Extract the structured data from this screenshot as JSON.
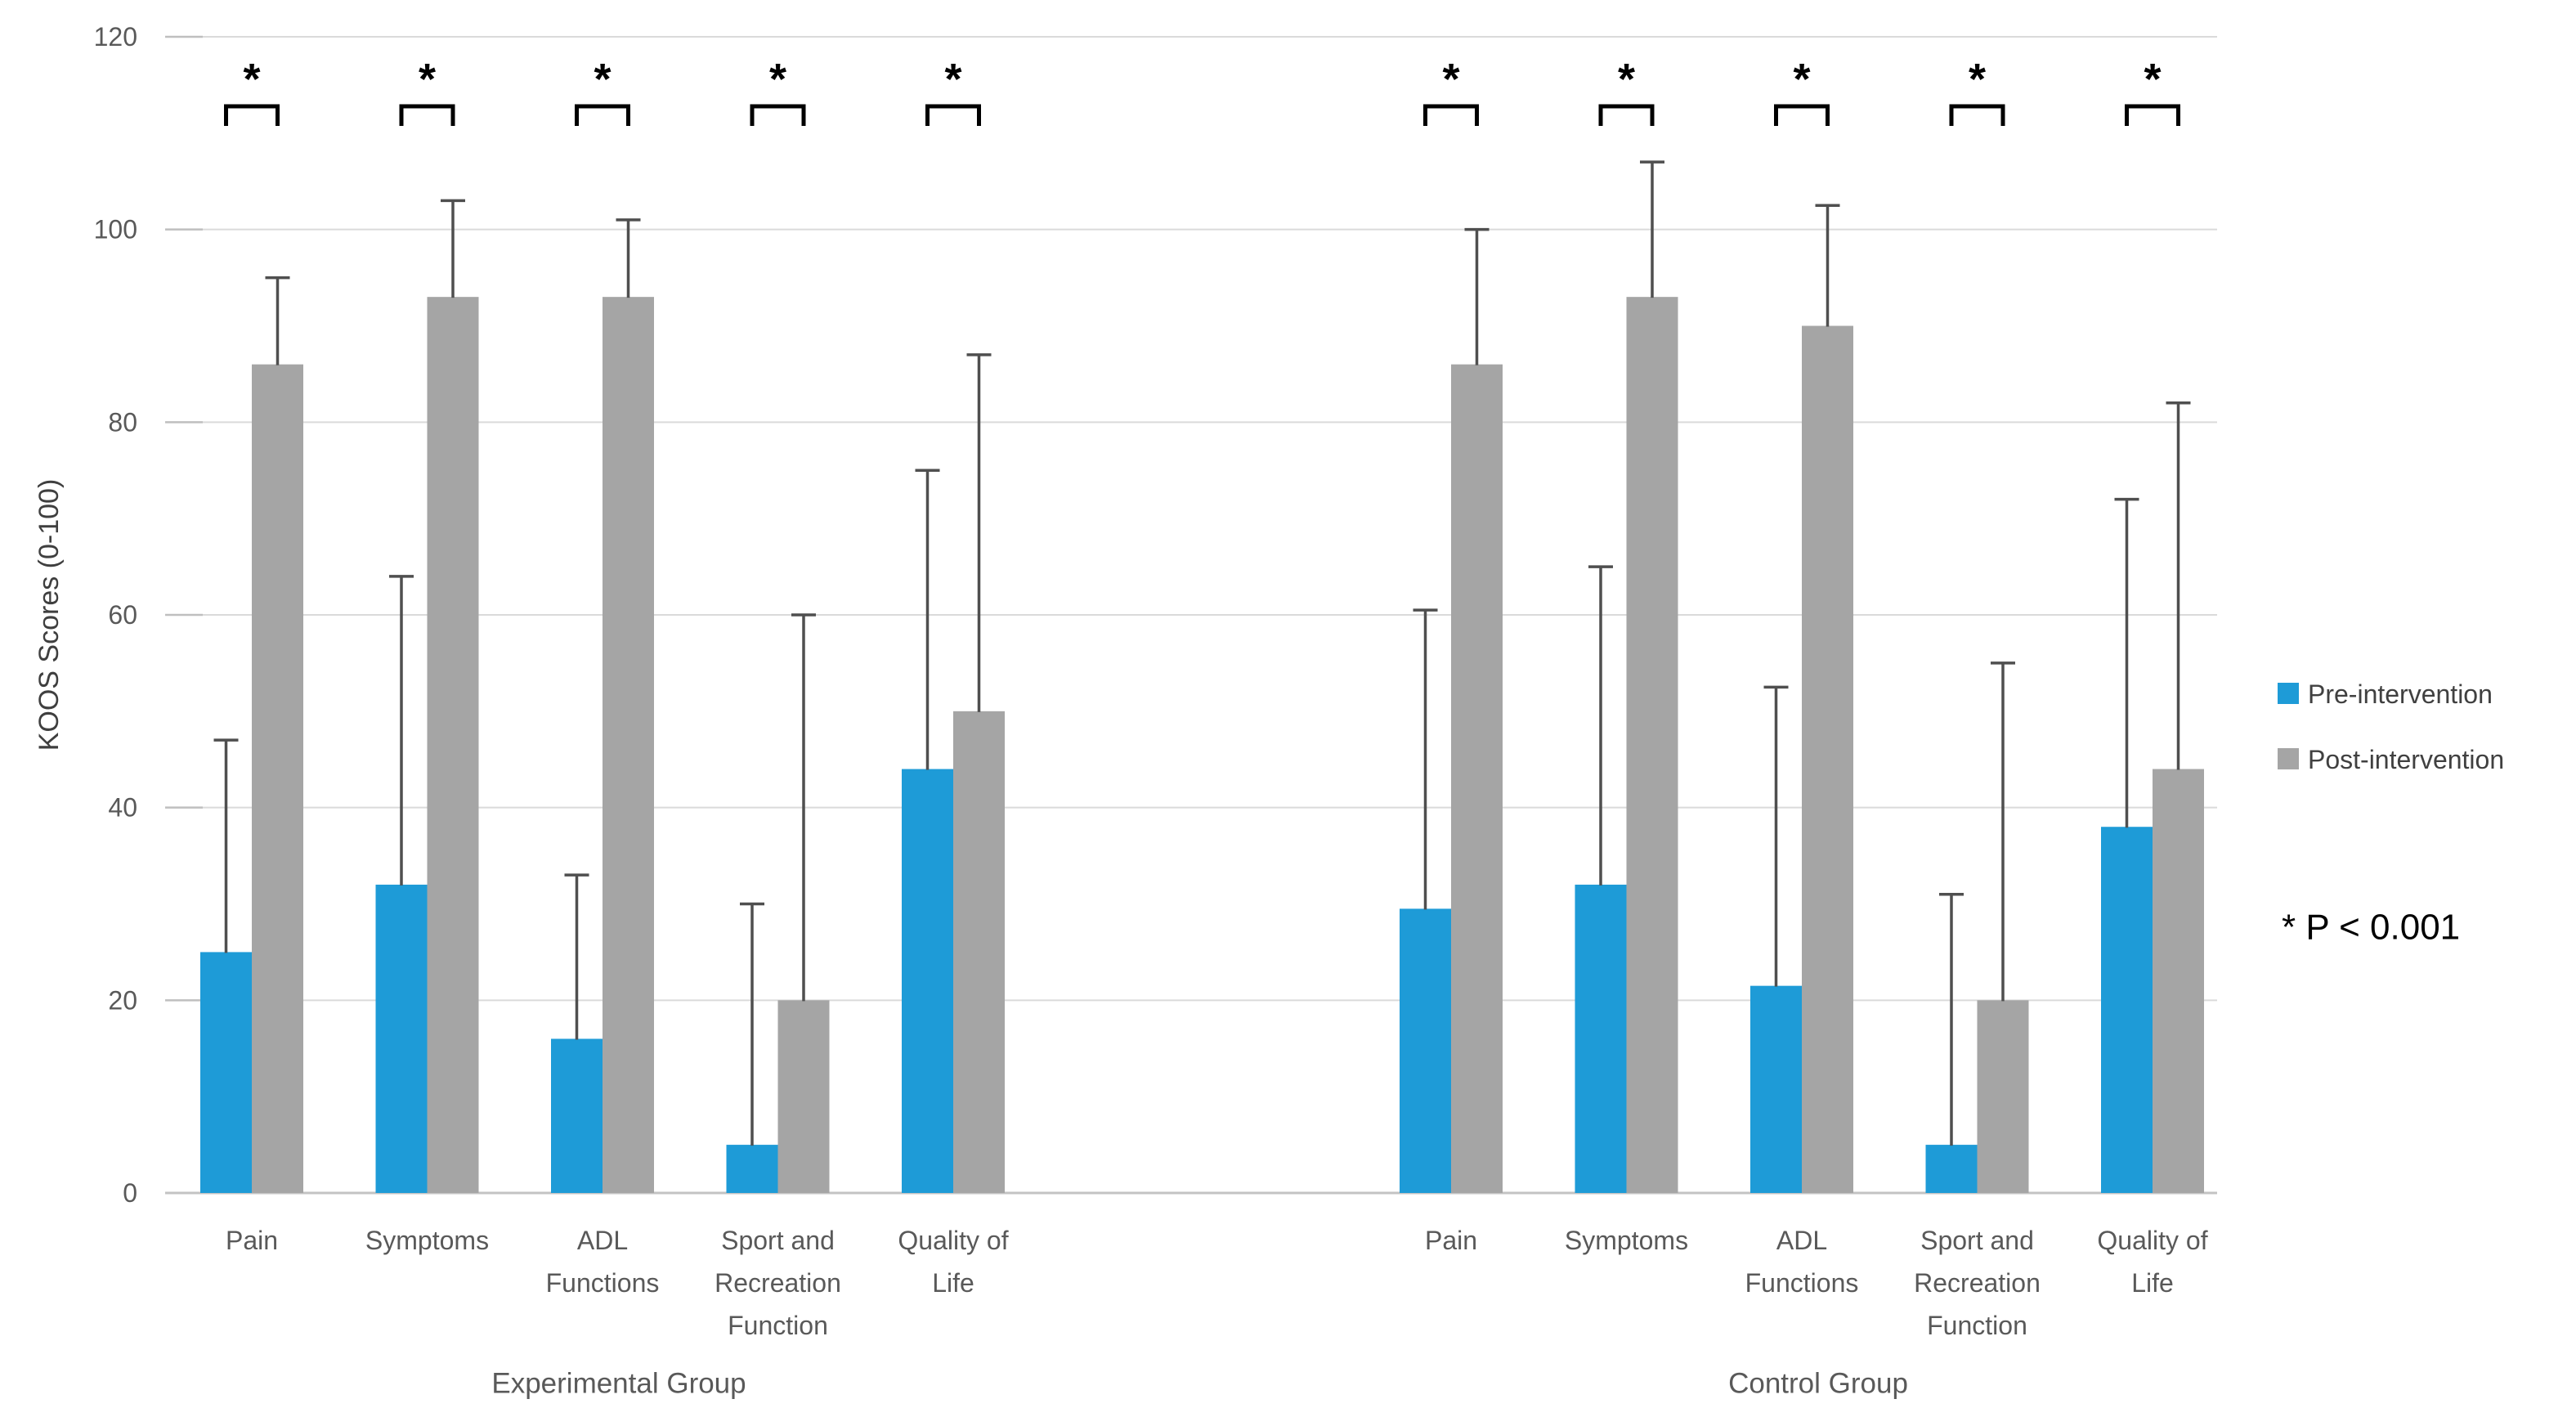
{
  "chart_data": {
    "type": "bar",
    "title": "",
    "ylabel": "KOOS Scores (0-100)",
    "ylim": [
      0,
      120
    ],
    "yticks": [
      0,
      20,
      40,
      60,
      80,
      100,
      120
    ],
    "grid": true,
    "error_bars": "upper",
    "legend_position": "right",
    "sig_marker": "*",
    "significance_note": "* P < 0.001",
    "colors": {
      "pre": "#1E9BD7",
      "post": "#A5A5A5",
      "gridline": "#DADADA",
      "axis_line": "#C3C3C3",
      "tick_mark": "#BFBFBF",
      "error_bar": "#4F4F4F",
      "bracket": "#000000",
      "tick_text": "#595959",
      "label_text": "#595959",
      "legend_text": "#404040",
      "note_text": "#000000",
      "axis_title_text": "#3F3F3F"
    },
    "legend": [
      {
        "name": "Pre-intervention",
        "color": "#1E9BD7"
      },
      {
        "name": "Post-intervention",
        "color": "#A5A5A5"
      }
    ],
    "groups": [
      {
        "label": "Experimental Group",
        "categories": [
          {
            "label_lines": [
              "Pain"
            ],
            "pre": {
              "value": 25,
              "error_top": 47
            },
            "post": {
              "value": 86,
              "error_top": 95
            },
            "significant": true
          },
          {
            "label_lines": [
              "Symptoms"
            ],
            "pre": {
              "value": 32,
              "error_top": 64
            },
            "post": {
              "value": 93,
              "error_top": 103
            },
            "significant": true
          },
          {
            "label_lines": [
              "ADL",
              "Functions"
            ],
            "pre": {
              "value": 16,
              "error_top": 33
            },
            "post": {
              "value": 93,
              "error_top": 101
            },
            "significant": true
          },
          {
            "label_lines": [
              "Sport and",
              "Recreation",
              "Function"
            ],
            "pre": {
              "value": 5,
              "error_top": 30
            },
            "post": {
              "value": 20,
              "error_top": 60
            },
            "significant": true
          },
          {
            "label_lines": [
              "Quality of",
              "Life"
            ],
            "pre": {
              "value": 44,
              "error_top": 75
            },
            "post": {
              "value": 50,
              "error_top": 87
            },
            "significant": true
          }
        ]
      },
      {
        "label": "Control Group",
        "categories": [
          {
            "label_lines": [
              "Pain"
            ],
            "pre": {
              "value": 29.5,
              "error_top": 60.5
            },
            "post": {
              "value": 86,
              "error_top": 100
            },
            "significant": true
          },
          {
            "label_lines": [
              "Symptoms"
            ],
            "pre": {
              "value": 32,
              "error_top": 65
            },
            "post": {
              "value": 93,
              "error_top": 107
            },
            "significant": true
          },
          {
            "label_lines": [
              "ADL",
              "Functions"
            ],
            "pre": {
              "value": 21.5,
              "error_top": 52.5
            },
            "post": {
              "value": 90,
              "error_top": 102.5
            },
            "significant": true
          },
          {
            "label_lines": [
              "Sport and",
              "Recreation",
              "Function"
            ],
            "pre": {
              "value": 5,
              "error_top": 31
            },
            "post": {
              "value": 20,
              "error_top": 55
            },
            "significant": true
          },
          {
            "label_lines": [
              "Quality of",
              "Life"
            ],
            "pre": {
              "value": 38,
              "error_top": 72
            },
            "post": {
              "value": 44,
              "error_top": 82
            },
            "significant": true
          }
        ]
      }
    ]
  }
}
